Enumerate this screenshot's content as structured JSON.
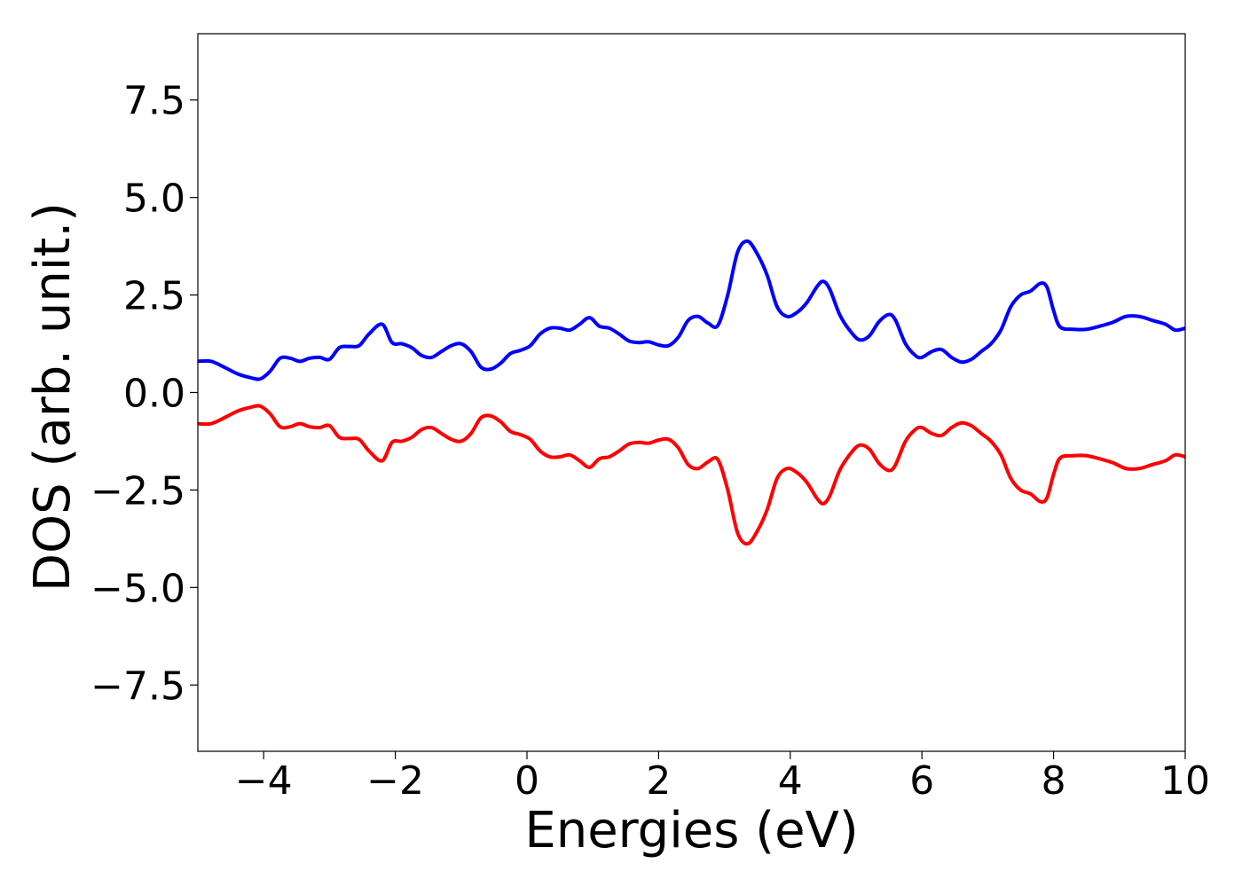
{
  "chart_data": {
    "type": "line",
    "title": "",
    "xlabel": "Energies (eV)",
    "ylabel": "DOS (arb. unit.)",
    "xlim": [
      -5,
      10
    ],
    "ylim": [
      -9.2,
      9.2
    ],
    "xticks": [
      -4,
      -2,
      0,
      2,
      4,
      6,
      8,
      10
    ],
    "xtick_labels": [
      "−4",
      "−2",
      "0",
      "2",
      "4",
      "6",
      "8",
      "10"
    ],
    "yticks": [
      7.5,
      5.0,
      2.5,
      0.0,
      -2.5,
      -5.0,
      -7.5
    ],
    "ytick_labels": [
      "7.5",
      "5.0",
      "2.5",
      "0.0",
      "−2.5",
      "−5.0",
      "−7.5"
    ],
    "grid": false,
    "legend": "none",
    "series": [
      {
        "color": "#0000ff",
        "x": [
          -5.0,
          -4.8,
          -4.6,
          -4.4,
          -4.2,
          -4.05,
          -3.9,
          -3.75,
          -3.6,
          -3.45,
          -3.3,
          -3.15,
          -3.0,
          -2.85,
          -2.7,
          -2.55,
          -2.4,
          -2.2,
          -2.05,
          -1.9,
          -1.75,
          -1.6,
          -1.45,
          -1.3,
          -1.15,
          -1.0,
          -0.85,
          -0.7,
          -0.55,
          -0.4,
          -0.25,
          -0.1,
          0.05,
          0.2,
          0.35,
          0.5,
          0.65,
          0.8,
          0.95,
          1.1,
          1.25,
          1.4,
          1.55,
          1.7,
          1.85,
          2.0,
          2.15,
          2.3,
          2.45,
          2.6,
          2.75,
          2.9,
          3.05,
          3.2,
          3.35,
          3.5,
          3.65,
          3.8,
          3.95,
          4.1,
          4.25,
          4.4,
          4.5,
          4.6,
          4.75,
          4.9,
          5.05,
          5.2,
          5.35,
          5.5,
          5.6,
          5.75,
          5.9,
          6.0,
          6.15,
          6.3,
          6.45,
          6.6,
          6.75,
          6.9,
          7.05,
          7.2,
          7.35,
          7.5,
          7.65,
          7.8,
          7.9,
          8.0,
          8.1,
          8.3,
          8.5,
          8.7,
          8.9,
          9.1,
          9.3,
          9.5,
          9.7,
          9.85,
          10.0
        ],
        "values": [
          0.8,
          0.8,
          0.65,
          0.48,
          0.38,
          0.35,
          0.55,
          0.88,
          0.88,
          0.8,
          0.88,
          0.9,
          0.85,
          1.15,
          1.18,
          1.2,
          1.5,
          1.75,
          1.28,
          1.25,
          1.15,
          0.95,
          0.9,
          1.05,
          1.2,
          1.25,
          1.05,
          0.65,
          0.6,
          0.75,
          1.0,
          1.08,
          1.2,
          1.5,
          1.65,
          1.65,
          1.6,
          1.75,
          1.92,
          1.7,
          1.65,
          1.5,
          1.32,
          1.28,
          1.3,
          1.22,
          1.2,
          1.42,
          1.85,
          1.95,
          1.78,
          1.72,
          2.5,
          3.6,
          3.88,
          3.55,
          3.0,
          2.2,
          1.95,
          2.05,
          2.3,
          2.7,
          2.85,
          2.65,
          2.0,
          1.6,
          1.35,
          1.45,
          1.82,
          2.0,
          1.85,
          1.25,
          0.95,
          0.9,
          1.05,
          1.1,
          0.9,
          0.78,
          0.85,
          1.05,
          1.25,
          1.6,
          2.2,
          2.5,
          2.6,
          2.8,
          2.7,
          2.1,
          1.68,
          1.62,
          1.62,
          1.7,
          1.8,
          1.95,
          1.95,
          1.85,
          1.75,
          1.6,
          1.65
        ]
      },
      {
        "color": "#ff0000",
        "x": [
          -5.0,
          -4.8,
          -4.6,
          -4.4,
          -4.2,
          -4.05,
          -3.9,
          -3.75,
          -3.6,
          -3.45,
          -3.3,
          -3.15,
          -3.0,
          -2.85,
          -2.7,
          -2.55,
          -2.4,
          -2.2,
          -2.05,
          -1.9,
          -1.75,
          -1.6,
          -1.45,
          -1.3,
          -1.15,
          -1.0,
          -0.85,
          -0.7,
          -0.55,
          -0.4,
          -0.25,
          -0.1,
          0.05,
          0.2,
          0.35,
          0.5,
          0.65,
          0.8,
          0.95,
          1.1,
          1.25,
          1.4,
          1.55,
          1.7,
          1.85,
          2.0,
          2.15,
          2.3,
          2.45,
          2.6,
          2.75,
          2.9,
          3.05,
          3.2,
          3.35,
          3.5,
          3.65,
          3.8,
          3.95,
          4.1,
          4.25,
          4.4,
          4.5,
          4.6,
          4.75,
          4.9,
          5.05,
          5.2,
          5.35,
          5.5,
          5.6,
          5.75,
          5.9,
          6.0,
          6.15,
          6.3,
          6.45,
          6.6,
          6.75,
          6.9,
          7.05,
          7.2,
          7.35,
          7.5,
          7.65,
          7.8,
          7.9,
          8.0,
          8.1,
          8.3,
          8.5,
          8.7,
          8.9,
          9.1,
          9.3,
          9.5,
          9.7,
          9.85,
          10.0
        ],
        "values": [
          -0.8,
          -0.8,
          -0.65,
          -0.48,
          -0.38,
          -0.35,
          -0.55,
          -0.88,
          -0.88,
          -0.8,
          -0.88,
          -0.9,
          -0.85,
          -1.15,
          -1.18,
          -1.2,
          -1.5,
          -1.75,
          -1.28,
          -1.25,
          -1.15,
          -0.95,
          -0.9,
          -1.05,
          -1.2,
          -1.25,
          -1.05,
          -0.65,
          -0.6,
          -0.75,
          -1.0,
          -1.08,
          -1.2,
          -1.5,
          -1.65,
          -1.65,
          -1.6,
          -1.75,
          -1.92,
          -1.7,
          -1.65,
          -1.5,
          -1.32,
          -1.28,
          -1.3,
          -1.22,
          -1.2,
          -1.42,
          -1.85,
          -1.95,
          -1.78,
          -1.72,
          -2.5,
          -3.6,
          -3.88,
          -3.55,
          -3.0,
          -2.2,
          -1.95,
          -2.05,
          -2.3,
          -2.7,
          -2.85,
          -2.65,
          -2.0,
          -1.6,
          -1.35,
          -1.45,
          -1.82,
          -2.0,
          -1.85,
          -1.25,
          -0.95,
          -0.9,
          -1.05,
          -1.1,
          -0.9,
          -0.78,
          -0.85,
          -1.05,
          -1.25,
          -1.6,
          -2.2,
          -2.5,
          -2.6,
          -2.8,
          -2.7,
          -2.1,
          -1.68,
          -1.62,
          -1.62,
          -1.7,
          -1.8,
          -1.95,
          -1.95,
          -1.85,
          -1.75,
          -1.6,
          -1.65
        ]
      }
    ]
  }
}
